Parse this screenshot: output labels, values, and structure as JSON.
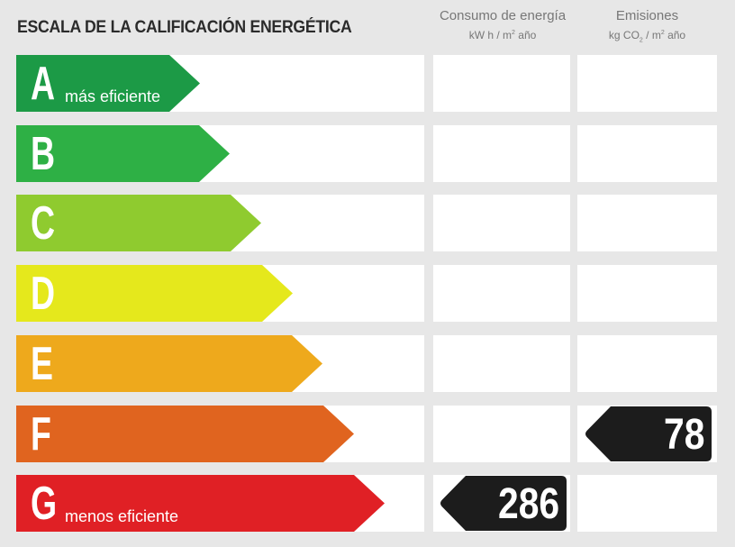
{
  "title": "ESCALA DE LA CALIFICACIÓN ENERGÉTICA",
  "columns": {
    "energy": {
      "label": "Consumo de energía",
      "unit_prefix": "kW h / m",
      "unit_exp": "2",
      "unit_suffix": " año"
    },
    "emissions": {
      "label": "Emisiones",
      "unit_prefix": "kg CO",
      "unit_sub": "2",
      "unit_mid": " / m",
      "unit_exp": "2",
      "unit_suffix": " año"
    }
  },
  "ratings": [
    {
      "letter": "A",
      "color": "#1c9a46",
      "caption": "más eficiente"
    },
    {
      "letter": "B",
      "color": "#2eb045",
      "caption": ""
    },
    {
      "letter": "C",
      "color": "#8fcb2f",
      "caption": ""
    },
    {
      "letter": "D",
      "color": "#e5e81c",
      "caption": ""
    },
    {
      "letter": "E",
      "color": "#eea91c",
      "caption": ""
    },
    {
      "letter": "F",
      "color": "#e0641f",
      "caption": ""
    },
    {
      "letter": "G",
      "color": "#e02025",
      "caption": "menos eficiente"
    }
  ],
  "energy_indicator": {
    "value": "286",
    "rating": "G"
  },
  "emissions_indicator": {
    "value": "78",
    "rating": "F"
  },
  "indicator_color": "#1c1c1c"
}
